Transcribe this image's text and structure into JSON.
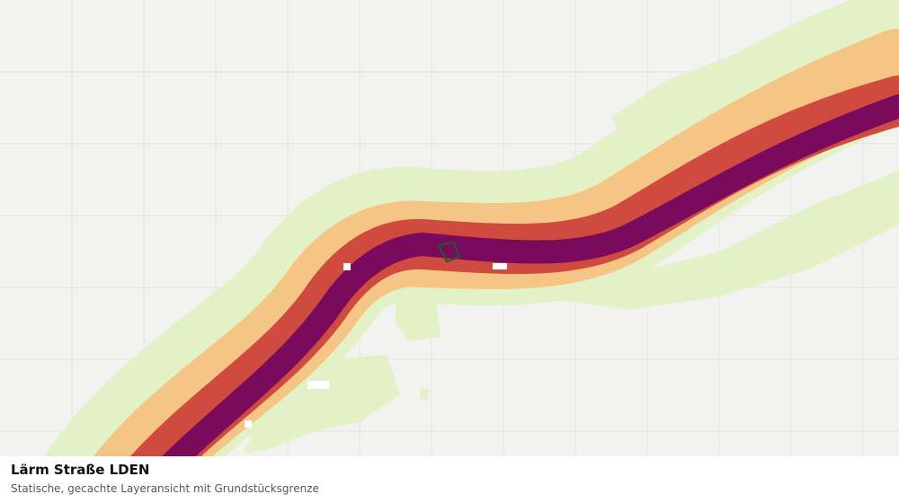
{
  "map": {
    "background": "#f2f3f1",
    "grid_color": "#e1e3e0",
    "zones": [
      {
        "name": "band-outer",
        "color": "#e2f2c6"
      },
      {
        "name": "band-mid",
        "color": "#f5c585"
      },
      {
        "name": "band-inner",
        "color": "#cf4a3f"
      },
      {
        "name": "band-core",
        "color": "#7a0a5c"
      }
    ],
    "parcel_outline_color": "#2f4f38"
  },
  "caption": {
    "title": "Lärm Straße LDEN",
    "subtitle": "Statische, gecachte Layeransicht mit Grundstücksgrenze"
  }
}
